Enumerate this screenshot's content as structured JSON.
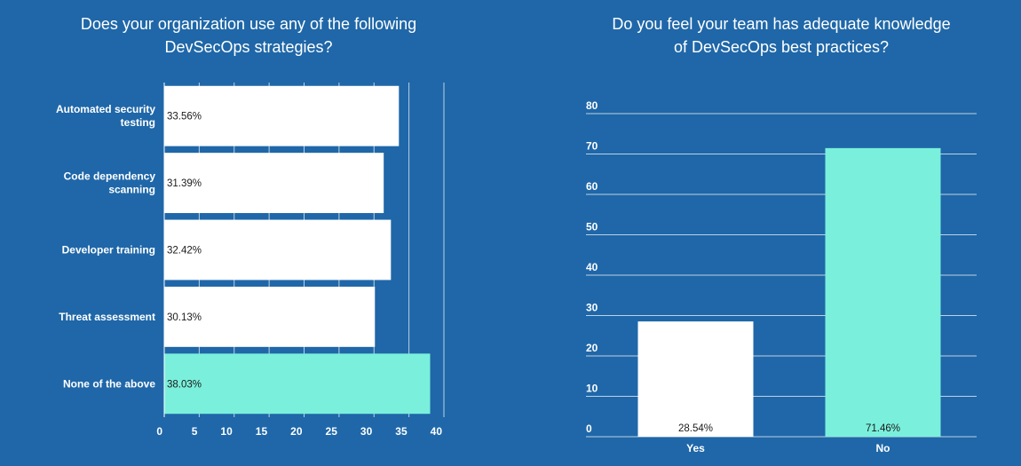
{
  "colors": {
    "background": "#1f67a8",
    "bar_default": "#ffffff",
    "bar_highlight": "#7af0dc",
    "grid": "#ffffff",
    "text": "#ffffff",
    "value_text": "#1a1a1a"
  },
  "chart_data": [
    {
      "type": "bar",
      "orientation": "horizontal",
      "title": [
        "Does your organization use any of the following",
        "DevSecOps strategies?"
      ],
      "categories": [
        [
          "Automated security",
          "testing"
        ],
        [
          "Code dependency",
          "scanning"
        ],
        [
          "Developer training"
        ],
        [
          "Threat assessment"
        ],
        [
          "None of the above"
        ]
      ],
      "values": [
        33.56,
        31.39,
        32.42,
        30.13,
        38.03
      ],
      "value_labels": [
        "33.56%",
        "31.39%",
        "32.42%",
        "30.13%",
        "38.03%"
      ],
      "highlight_index": 4,
      "xlim": [
        0,
        40
      ],
      "xticks": [
        0,
        5,
        10,
        15,
        20,
        25,
        30,
        35,
        40
      ],
      "grid": true,
      "legend": "none"
    },
    {
      "type": "bar",
      "orientation": "vertical",
      "title": [
        "Do you feel your team has adequate knowledge",
        "of DevSecOps best practices?"
      ],
      "categories": [
        "Yes",
        "No"
      ],
      "values": [
        28.54,
        71.46
      ],
      "value_labels": [
        "28.54%",
        "71.46%"
      ],
      "highlight_index": 1,
      "ylim": [
        0,
        80
      ],
      "yticks": [
        0,
        10,
        20,
        30,
        40,
        50,
        60,
        70,
        80
      ],
      "grid": true,
      "legend": "none"
    }
  ]
}
